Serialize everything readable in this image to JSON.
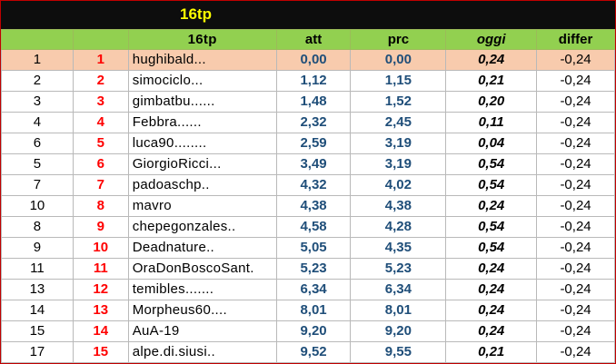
{
  "sheet": {
    "title": "16tp",
    "columns": [
      "",
      "",
      "16tp",
      "att",
      "prc",
      "oggi",
      "differ"
    ],
    "rows": [
      [
        "1",
        "1",
        "hughibald...",
        "0,00",
        "0,00",
        "0,24",
        "-0,24"
      ],
      [
        "2",
        "2",
        "simociclo...",
        "1,12",
        "1,15",
        "0,21",
        "-0,24"
      ],
      [
        "3",
        "3",
        "gimbatbu......",
        "1,48",
        "1,52",
        "0,20",
        "-0,24"
      ],
      [
        "4",
        "4",
        "Febbra......",
        "2,32",
        "2,45",
        "0,11",
        "-0,24"
      ],
      [
        "6",
        "5",
        "luca90........",
        "2,59",
        "3,19",
        "0,04",
        "-0,24"
      ],
      [
        "5",
        "6",
        "GiorgioRicci...",
        "3,49",
        "3,19",
        "0,54",
        "-0,24"
      ],
      [
        "7",
        "7",
        "padoaschp..",
        "4,32",
        "4,02",
        "0,54",
        "-0,24"
      ],
      [
        "10",
        "8",
        "mavro",
        "4,38",
        "4,38",
        "0,24",
        "-0,24"
      ],
      [
        "8",
        "9",
        "chepegonzales..",
        "4,58",
        "4,28",
        "0,54",
        "-0,24"
      ],
      [
        "9",
        "10",
        "Deadnature..",
        "5,05",
        "4,35",
        "0,54",
        "-0,24"
      ],
      [
        "11",
        "11",
        "OraDonBoscoSant.",
        "5,23",
        "5,23",
        "0,24",
        "-0,24"
      ],
      [
        "13",
        "12",
        "temibles.......",
        "6,34",
        "6,34",
        "0,24",
        "-0,24"
      ],
      [
        "14",
        "13",
        "Morpheus60....",
        "8,01",
        "8,01",
        "0,24",
        "-0,24"
      ],
      [
        "15",
        "14",
        "AuA-19",
        "9,20",
        "9,20",
        "0,24",
        "-0,24"
      ],
      [
        "17",
        "15",
        "alpe.di.siusi..",
        "9,52",
        "9,55",
        "0,21",
        "-0,24"
      ]
    ]
  },
  "colors": {
    "header_bg": "#92d050",
    "top_band_bg": "#0d0d0d",
    "title_color": "#ffff00",
    "highlight_row_bg": "#f8cbad",
    "position_color": "#ff0000",
    "value_color": "#1f4e79"
  }
}
